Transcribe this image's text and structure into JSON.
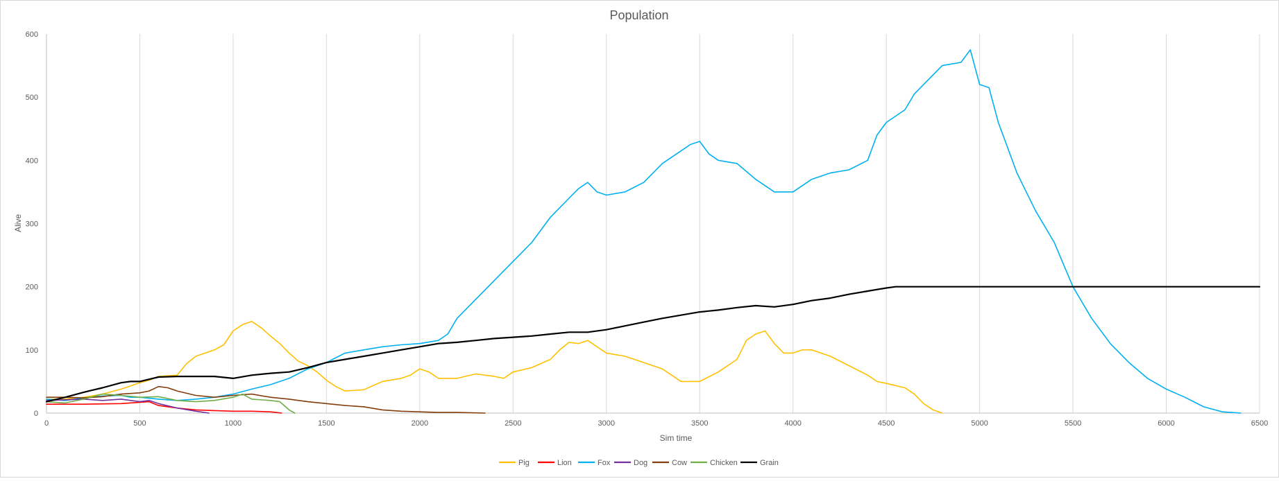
{
  "chart_data": {
    "type": "line",
    "title": "Population",
    "xlabel": "Sim time",
    "ylabel": "Alive",
    "xlim": [
      0,
      6500
    ],
    "ylim": [
      0,
      600
    ],
    "x_ticks": [
      0,
      500,
      1000,
      1500,
      2000,
      2500,
      3000,
      3500,
      4000,
      4500,
      5000,
      5500,
      6000,
      6500
    ],
    "y_ticks": [
      0,
      100,
      200,
      300,
      400,
      500,
      600
    ],
    "grid": "vertical",
    "legend_position": "bottom",
    "series": [
      {
        "name": "Pig",
        "color": "#FFC000",
        "points": [
          [
            0,
            22
          ],
          [
            100,
            22
          ],
          [
            200,
            25
          ],
          [
            300,
            30
          ],
          [
            400,
            38
          ],
          [
            500,
            48
          ],
          [
            550,
            52
          ],
          [
            600,
            58
          ],
          [
            700,
            60
          ],
          [
            750,
            78
          ],
          [
            800,
            90
          ],
          [
            900,
            100
          ],
          [
            950,
            108
          ],
          [
            1000,
            130
          ],
          [
            1050,
            140
          ],
          [
            1100,
            145
          ],
          [
            1150,
            135
          ],
          [
            1200,
            122
          ],
          [
            1250,
            110
          ],
          [
            1300,
            95
          ],
          [
            1350,
            82
          ],
          [
            1400,
            75
          ],
          [
            1450,
            65
          ],
          [
            1500,
            52
          ],
          [
            1550,
            42
          ],
          [
            1600,
            35
          ],
          [
            1700,
            37
          ],
          [
            1800,
            50
          ],
          [
            1900,
            55
          ],
          [
            1950,
            60
          ],
          [
            2000,
            70
          ],
          [
            2050,
            65
          ],
          [
            2100,
            55
          ],
          [
            2200,
            55
          ],
          [
            2300,
            62
          ],
          [
            2400,
            58
          ],
          [
            2450,
            55
          ],
          [
            2500,
            65
          ],
          [
            2600,
            72
          ],
          [
            2700,
            85
          ],
          [
            2750,
            100
          ],
          [
            2800,
            112
          ],
          [
            2850,
            110
          ],
          [
            2900,
            115
          ],
          [
            2950,
            105
          ],
          [
            3000,
            95
          ],
          [
            3100,
            90
          ],
          [
            3200,
            80
          ],
          [
            3300,
            70
          ],
          [
            3400,
            50
          ],
          [
            3500,
            50
          ],
          [
            3600,
            65
          ],
          [
            3700,
            85
          ],
          [
            3750,
            115
          ],
          [
            3800,
            125
          ],
          [
            3850,
            130
          ],
          [
            3900,
            110
          ],
          [
            3950,
            95
          ],
          [
            4000,
            95
          ],
          [
            4050,
            100
          ],
          [
            4100,
            100
          ],
          [
            4200,
            90
          ],
          [
            4300,
            75
          ],
          [
            4400,
            60
          ],
          [
            4450,
            50
          ],
          [
            4500,
            47
          ],
          [
            4600,
            40
          ],
          [
            4650,
            30
          ],
          [
            4700,
            15
          ],
          [
            4750,
            5
          ],
          [
            4800,
            0
          ]
        ]
      },
      {
        "name": "Lion",
        "color": "#FF0000",
        "points": [
          [
            0,
            14
          ],
          [
            200,
            14
          ],
          [
            400,
            15
          ],
          [
            550,
            18
          ],
          [
            600,
            12
          ],
          [
            700,
            8
          ],
          [
            800,
            5
          ],
          [
            900,
            4
          ],
          [
            1000,
            3
          ],
          [
            1100,
            3
          ],
          [
            1200,
            2
          ],
          [
            1260,
            0
          ]
        ]
      },
      {
        "name": "Fox",
        "color": "#00B0F0",
        "points": [
          [
            0,
            22
          ],
          [
            100,
            20
          ],
          [
            200,
            24
          ],
          [
            300,
            27
          ],
          [
            400,
            28
          ],
          [
            450,
            25
          ],
          [
            500,
            25
          ],
          [
            600,
            22
          ],
          [
            700,
            20
          ],
          [
            800,
            22
          ],
          [
            900,
            25
          ],
          [
            1000,
            30
          ],
          [
            1100,
            38
          ],
          [
            1200,
            45
          ],
          [
            1300,
            55
          ],
          [
            1400,
            70
          ],
          [
            1500,
            80
          ],
          [
            1600,
            95
          ],
          [
            1700,
            100
          ],
          [
            1800,
            105
          ],
          [
            1900,
            108
          ],
          [
            2000,
            110
          ],
          [
            2100,
            115
          ],
          [
            2150,
            125
          ],
          [
            2200,
            150
          ],
          [
            2300,
            180
          ],
          [
            2400,
            210
          ],
          [
            2500,
            240
          ],
          [
            2600,
            270
          ],
          [
            2700,
            310
          ],
          [
            2800,
            340
          ],
          [
            2850,
            355
          ],
          [
            2900,
            365
          ],
          [
            2950,
            350
          ],
          [
            3000,
            345
          ],
          [
            3100,
            350
          ],
          [
            3200,
            365
          ],
          [
            3300,
            395
          ],
          [
            3400,
            415
          ],
          [
            3450,
            425
          ],
          [
            3500,
            430
          ],
          [
            3550,
            410
          ],
          [
            3600,
            400
          ],
          [
            3700,
            395
          ],
          [
            3800,
            370
          ],
          [
            3900,
            350
          ],
          [
            4000,
            350
          ],
          [
            4100,
            370
          ],
          [
            4200,
            380
          ],
          [
            4300,
            385
          ],
          [
            4400,
            400
          ],
          [
            4450,
            440
          ],
          [
            4500,
            460
          ],
          [
            4600,
            480
          ],
          [
            4650,
            505
          ],
          [
            4700,
            520
          ],
          [
            4800,
            550
          ],
          [
            4900,
            555
          ],
          [
            4950,
            575
          ],
          [
            5000,
            520
          ],
          [
            5050,
            515
          ],
          [
            5100,
            460
          ],
          [
            5150,
            420
          ],
          [
            5200,
            380
          ],
          [
            5300,
            320
          ],
          [
            5400,
            270
          ],
          [
            5450,
            235
          ],
          [
            5500,
            200
          ],
          [
            5550,
            175
          ],
          [
            5600,
            150
          ],
          [
            5700,
            110
          ],
          [
            5800,
            80
          ],
          [
            5900,
            55
          ],
          [
            6000,
            38
          ],
          [
            6100,
            25
          ],
          [
            6200,
            10
          ],
          [
            6300,
            2
          ],
          [
            6400,
            0
          ]
        ]
      },
      {
        "name": "Dog",
        "color": "#7030A0",
        "points": [
          [
            0,
            20
          ],
          [
            200,
            22
          ],
          [
            300,
            20
          ],
          [
            400,
            22
          ],
          [
            500,
            18
          ],
          [
            550,
            20
          ],
          [
            600,
            15
          ],
          [
            700,
            8
          ],
          [
            800,
            3
          ],
          [
            870,
            0
          ]
        ]
      },
      {
        "name": "Cow",
        "color": "#833C0B",
        "points": [
          [
            0,
            25
          ],
          [
            100,
            25
          ],
          [
            200,
            24
          ],
          [
            300,
            26
          ],
          [
            400,
            30
          ],
          [
            500,
            32
          ],
          [
            550,
            35
          ],
          [
            600,
            42
          ],
          [
            650,
            40
          ],
          [
            700,
            35
          ],
          [
            800,
            28
          ],
          [
            900,
            25
          ],
          [
            1000,
            28
          ],
          [
            1100,
            30
          ],
          [
            1200,
            25
          ],
          [
            1300,
            22
          ],
          [
            1400,
            18
          ],
          [
            1500,
            15
          ],
          [
            1600,
            12
          ],
          [
            1700,
            10
          ],
          [
            1800,
            5
          ],
          [
            1900,
            3
          ],
          [
            2000,
            2
          ],
          [
            2100,
            1
          ],
          [
            2200,
            1
          ],
          [
            2350,
            0
          ]
        ]
      },
      {
        "name": "Chicken",
        "color": "#70AD47",
        "points": [
          [
            0,
            18
          ],
          [
            100,
            16
          ],
          [
            200,
            22
          ],
          [
            300,
            30
          ],
          [
            400,
            28
          ],
          [
            500,
            25
          ],
          [
            600,
            26
          ],
          [
            700,
            20
          ],
          [
            800,
            18
          ],
          [
            900,
            20
          ],
          [
            1000,
            25
          ],
          [
            1050,
            30
          ],
          [
            1100,
            22
          ],
          [
            1200,
            20
          ],
          [
            1250,
            18
          ],
          [
            1300,
            5
          ],
          [
            1330,
            0
          ]
        ]
      },
      {
        "name": "Grain",
        "color": "#000000",
        "points": [
          [
            0,
            18
          ],
          [
            100,
            25
          ],
          [
            200,
            33
          ],
          [
            300,
            40
          ],
          [
            400,
            48
          ],
          [
            450,
            50
          ],
          [
            500,
            50
          ],
          [
            600,
            57
          ],
          [
            700,
            58
          ],
          [
            800,
            58
          ],
          [
            900,
            58
          ],
          [
            1000,
            55
          ],
          [
            1100,
            60
          ],
          [
            1200,
            63
          ],
          [
            1300,
            65
          ],
          [
            1400,
            72
          ],
          [
            1500,
            80
          ],
          [
            1600,
            85
          ],
          [
            1700,
            90
          ],
          [
            1800,
            95
          ],
          [
            1900,
            100
          ],
          [
            2000,
            105
          ],
          [
            2100,
            110
          ],
          [
            2200,
            112
          ],
          [
            2300,
            115
          ],
          [
            2400,
            118
          ],
          [
            2500,
            120
          ],
          [
            2600,
            122
          ],
          [
            2700,
            125
          ],
          [
            2800,
            128
          ],
          [
            2900,
            128
          ],
          [
            3000,
            132
          ],
          [
            3100,
            138
          ],
          [
            3200,
            144
          ],
          [
            3300,
            150
          ],
          [
            3400,
            155
          ],
          [
            3500,
            160
          ],
          [
            3600,
            163
          ],
          [
            3700,
            167
          ],
          [
            3800,
            170
          ],
          [
            3900,
            168
          ],
          [
            4000,
            172
          ],
          [
            4100,
            178
          ],
          [
            4200,
            182
          ],
          [
            4300,
            188
          ],
          [
            4400,
            193
          ],
          [
            4500,
            198
          ],
          [
            4550,
            200
          ],
          [
            6500,
            200
          ]
        ]
      }
    ]
  }
}
